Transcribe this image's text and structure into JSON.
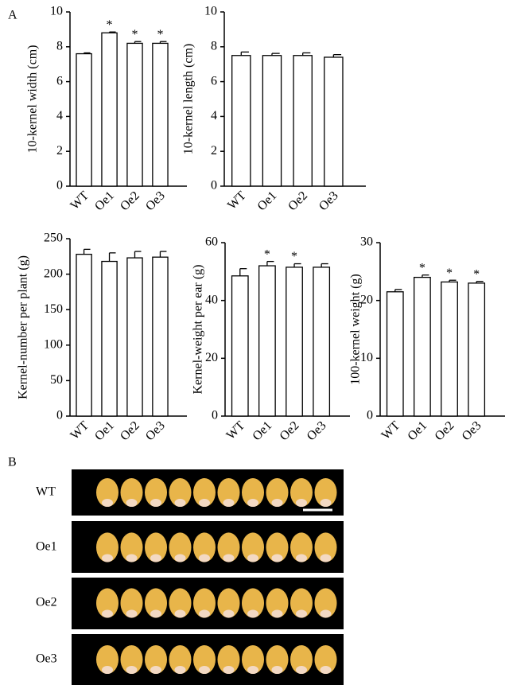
{
  "panel_labels": [
    "A",
    "B"
  ],
  "photo_rows": [
    "WT",
    "Oe1",
    "Oe2",
    "Oe3"
  ],
  "chart_data": [
    {
      "type": "bar",
      "ylabel": "10-kernel width (cm)",
      "categories": [
        "WT",
        "Oe1",
        "Oe2",
        "Oe3"
      ],
      "values": [
        7.6,
        8.8,
        8.2,
        8.2
      ],
      "errors": [
        0.05,
        0.05,
        0.1,
        0.1
      ],
      "annotations": [
        null,
        "*",
        "*",
        "*"
      ],
      "color": "#ffffff",
      "ylim": [
        0,
        10
      ],
      "yticks": [
        0,
        2,
        4,
        6,
        8,
        10
      ]
    },
    {
      "type": "bar",
      "ylabel": "10-kernel length (cm)",
      "categories": [
        "WT",
        "Oe1",
        "Oe2",
        "Oe3"
      ],
      "values": [
        7.5,
        7.5,
        7.5,
        7.4
      ],
      "errors": [
        0.2,
        0.12,
        0.15,
        0.15
      ],
      "annotations": [
        null,
        null,
        null,
        null
      ],
      "color": "#ffffff",
      "ylim": [
        0,
        10
      ],
      "yticks": [
        0,
        2,
        4,
        6,
        8,
        10
      ]
    },
    {
      "type": "bar",
      "ylabel": "Kernel-number per plant (g)",
      "categories": [
        "WT",
        "Oe1",
        "Oe2",
        "Oe3"
      ],
      "values": [
        228,
        218,
        223,
        224
      ],
      "errors": [
        7,
        12,
        9,
        8
      ],
      "annotations": [
        null,
        null,
        null,
        null
      ],
      "color": "#ffffff",
      "ylim": [
        0,
        250
      ],
      "yticks": [
        0,
        50,
        100,
        150,
        200,
        250
      ]
    },
    {
      "type": "bar",
      "ylabel": "Kernel-weight  per ear (g)",
      "categories": [
        "WT",
        "Oe1",
        "Oe2",
        "Oe3"
      ],
      "values": [
        48.5,
        52,
        51.5,
        51.5
      ],
      "errors": [
        2.5,
        1.5,
        1.2,
        1.2
      ],
      "annotations": [
        null,
        "*",
        "*",
        null
      ],
      "color": "#ffffff",
      "ylim": [
        0,
        60
      ],
      "yticks": [
        0,
        20,
        40,
        60
      ]
    },
    {
      "type": "bar",
      "ylabel": "100-kernel weight (g)",
      "categories": [
        "WT",
        "Oe1",
        "Oe2",
        "Oe3"
      ],
      "values": [
        21.5,
        24,
        23.2,
        23
      ],
      "errors": [
        0.4,
        0.4,
        0.3,
        0.3
      ],
      "annotations": [
        null,
        "*",
        "*",
        "*"
      ],
      "color": "#ffffff",
      "ylim": [
        0,
        30
      ],
      "yticks": [
        0,
        10,
        20,
        30
      ]
    }
  ]
}
